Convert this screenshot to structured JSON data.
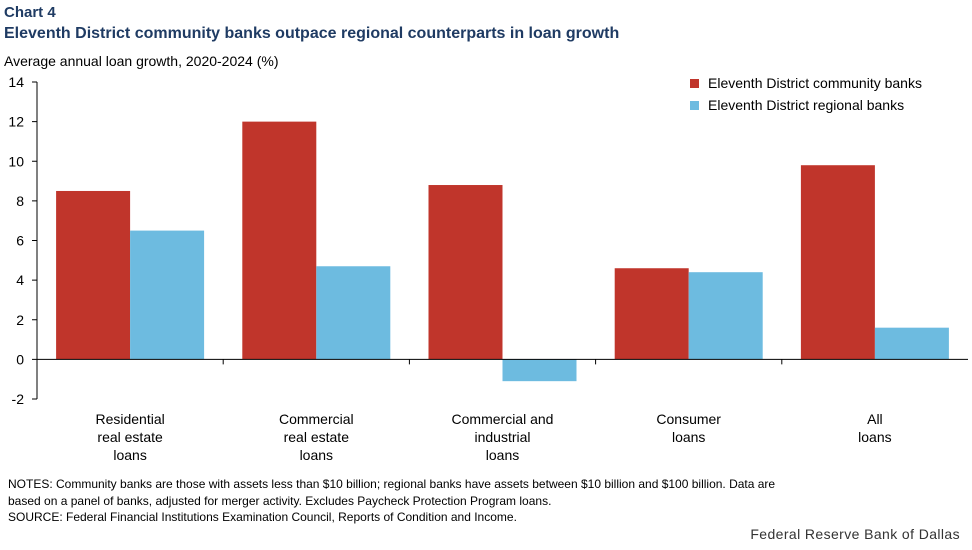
{
  "header": {
    "chart_label": "Chart 4",
    "title": "Eleventh District community banks outpace regional counterparts in loan growth",
    "subtitle": "Average annual loan growth, 2020-2024 (%)"
  },
  "colors": {
    "title": "#1f3b63",
    "community": "#c0352b",
    "regional": "#6dbbe0"
  },
  "chart_data": {
    "type": "bar",
    "categories": [
      "Residential real estate loans",
      "Commercial real estate loans",
      "Commercial and industrial loans",
      "Consumer loans",
      "All loans"
    ],
    "category_lines": [
      [
        "Residential",
        "real estate",
        "loans"
      ],
      [
        "Commercial",
        "real estate",
        "loans"
      ],
      [
        "Commercial and",
        "industrial",
        "loans"
      ],
      [
        "Consumer",
        "loans"
      ],
      [
        "All",
        "loans"
      ]
    ],
    "series": [
      {
        "name": "Eleventh District community banks",
        "values": [
          8.5,
          12.0,
          8.8,
          4.6,
          9.8
        ]
      },
      {
        "name": "Eleventh District regional banks",
        "values": [
          6.5,
          4.7,
          -1.1,
          4.4,
          1.6
        ]
      }
    ],
    "ylim": [
      -2,
      14
    ],
    "yticks": [
      "14",
      "12",
      "10",
      "8",
      "6",
      "4",
      "2",
      "0",
      "-2"
    ],
    "legend_position": "top-right",
    "grid": false
  },
  "notes": {
    "line1": "NOTES:  Community  banks are those with  assets less than $10 billion; regional banks have assets between $10 billion and $100 billion. Data are",
    "line2": "based on a panel of banks, adjusted for merger activity. Excludes  Paycheck Protection Program loans.",
    "line3": "SOURCE:  Federal Financial Institutions Examination  Council, Reports of Condition and Income."
  },
  "footer": {
    "source_org": "Federal  Reserve  Bank of Dallas"
  }
}
